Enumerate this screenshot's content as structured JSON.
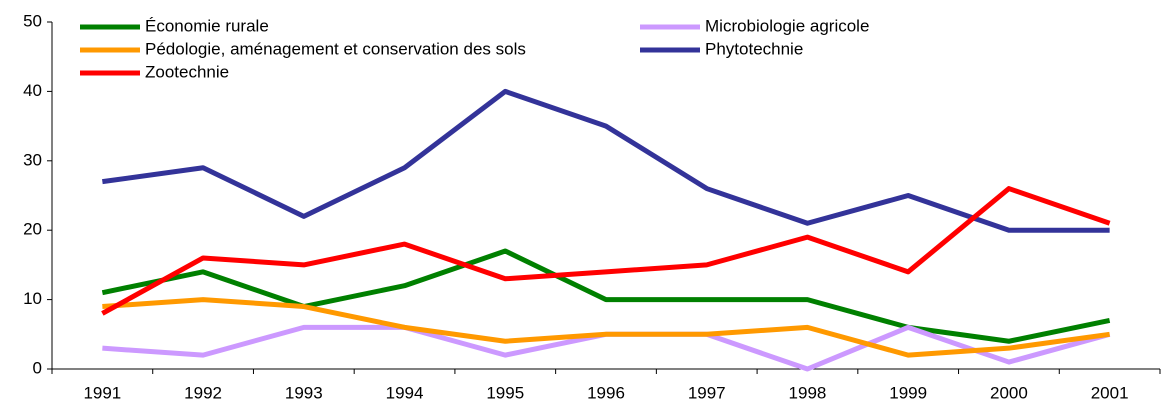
{
  "chart_data": {
    "type": "line",
    "categories": [
      "1991",
      "1992",
      "1993",
      "1994",
      "1995",
      "1996",
      "1997",
      "1998",
      "1999",
      "2000",
      "2001"
    ],
    "series": [
      {
        "name": "Économie rurale",
        "color": "#008000",
        "values": [
          11,
          14,
          9,
          12,
          17,
          10,
          10,
          10,
          6,
          4,
          7
        ]
      },
      {
        "name": "Microbiologie agricole",
        "color": "#cc99ff",
        "values": [
          3,
          2,
          6,
          6,
          2,
          5,
          5,
          0,
          6,
          1,
          5
        ]
      },
      {
        "name": "Pédologie, aménagement et conservation des sols",
        "color": "#ff9900",
        "values": [
          9,
          10,
          9,
          6,
          4,
          5,
          5,
          6,
          2,
          3,
          5
        ]
      },
      {
        "name": "Phytotechnie",
        "color": "#333399",
        "values": [
          27,
          29,
          22,
          29,
          40,
          35,
          26,
          21,
          25,
          20,
          20
        ]
      },
      {
        "name": "Zootechnie",
        "color": "#ff0000",
        "values": [
          8,
          16,
          15,
          18,
          13,
          14,
          15,
          19,
          14,
          26,
          21
        ]
      }
    ],
    "ylim": [
      0,
      50
    ],
    "yticks": [
      0,
      10,
      20,
      30,
      40,
      50
    ],
    "legend": "upper left"
  }
}
